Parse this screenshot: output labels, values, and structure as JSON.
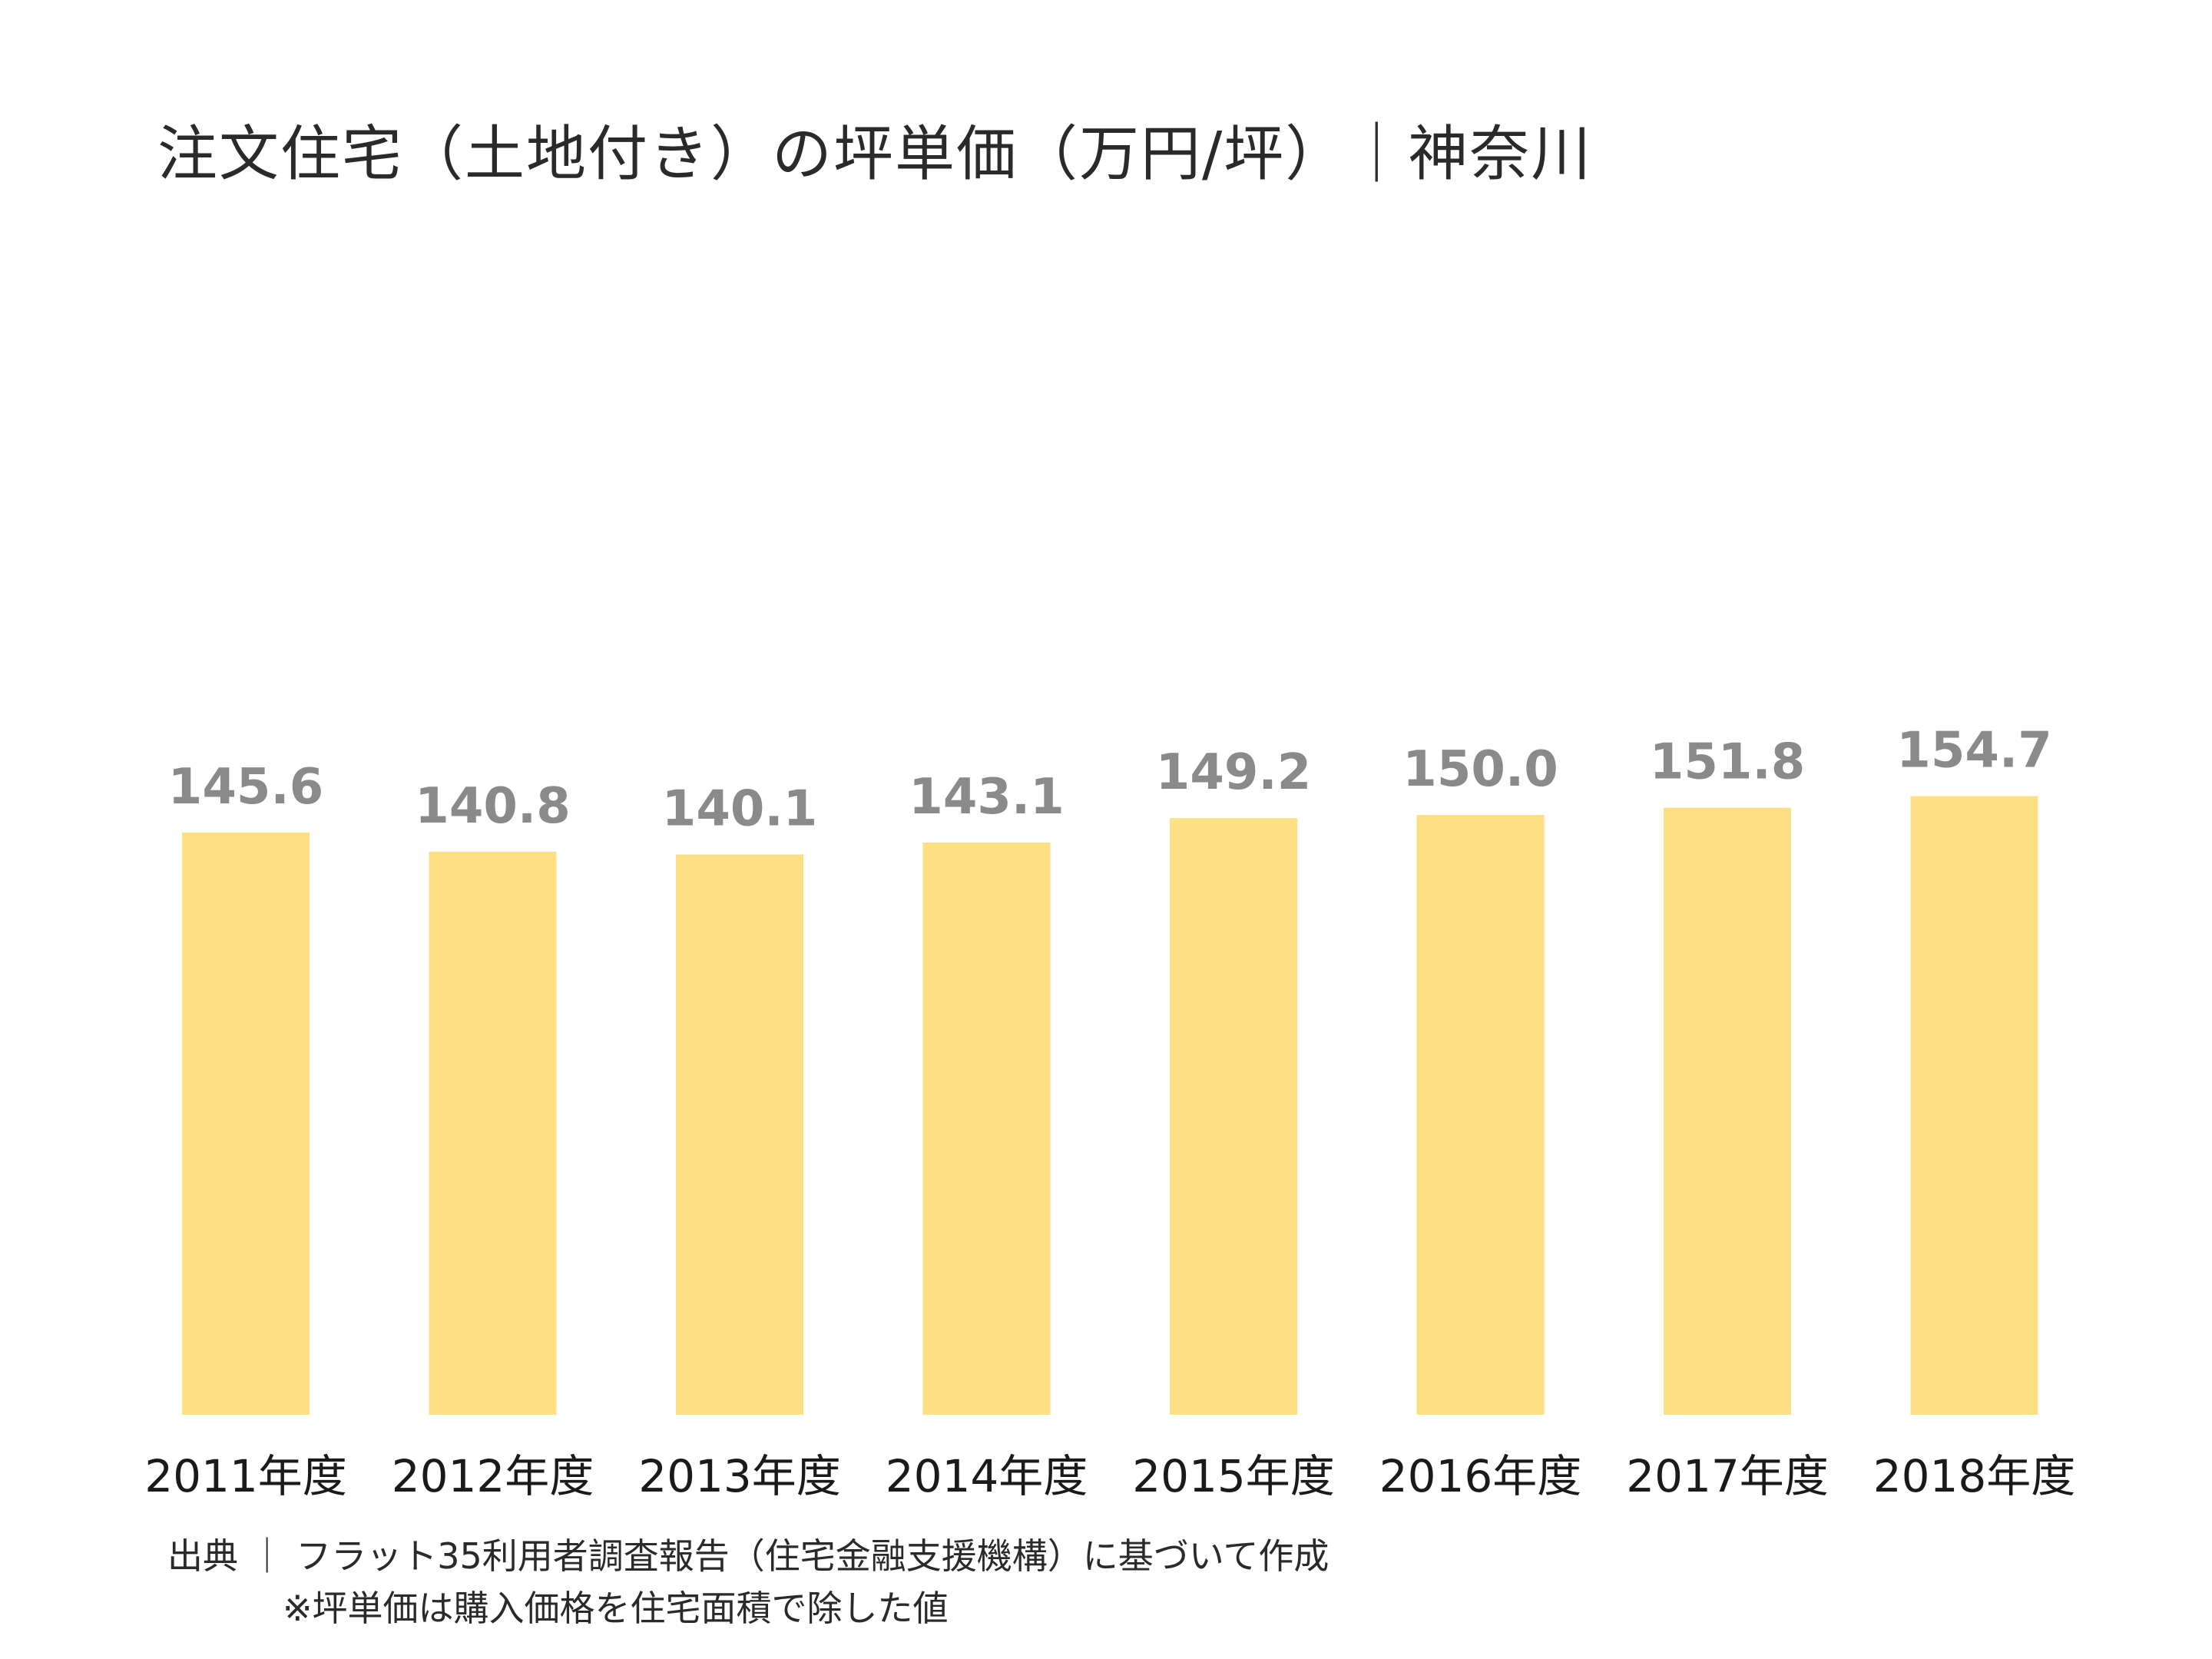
{
  "chart_data": {
    "type": "bar",
    "title": "注文住宅（土地付き）の坪単価（万円/坪）｜神奈川",
    "categories": [
      "2011年度",
      "2012年度",
      "2013年度",
      "2014年度",
      "2015年度",
      "2016年度",
      "2017年度",
      "2018年度"
    ],
    "values": [
      145.6,
      140.8,
      140.1,
      143.1,
      149.2,
      150.0,
      151.8,
      154.7
    ],
    "value_labels": [
      "145.6",
      "140.8",
      "140.1",
      "143.1",
      "149.2",
      "150.0",
      "151.8",
      "154.7"
    ],
    "xlabel": "",
    "ylabel": "",
    "ylim": [
      0,
      155
    ],
    "grid": false,
    "legend": "none",
    "bar_color": "#FDDF84",
    "value_label_color": "#8A8A8A"
  },
  "notes": {
    "source": "出典 ｜ フラット35利用者調査報告（住宅金融支援機構）に基づいて作成",
    "method": "※坪単価は購入価格を住宅面積で除した値"
  }
}
